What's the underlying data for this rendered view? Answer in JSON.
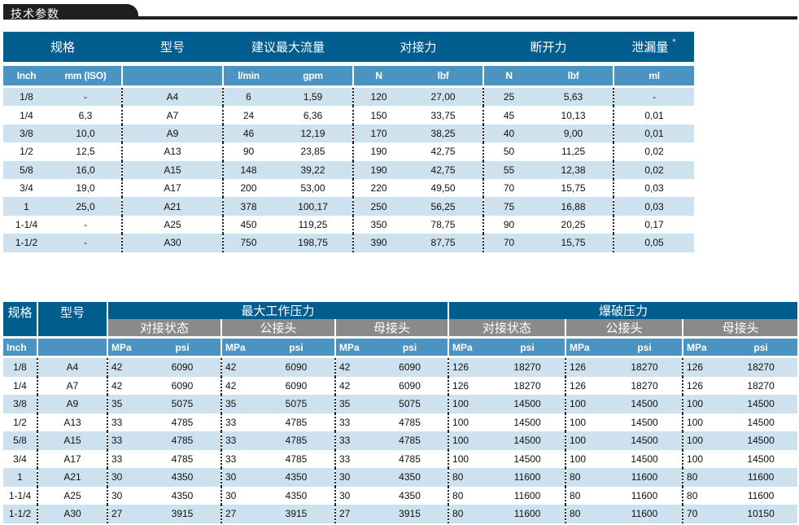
{
  "section_title": "技术参数",
  "table1": {
    "group_headers": [
      "规格",
      "型号",
      "建议最大流量",
      "对接力",
      "断开力",
      "泄漏量"
    ],
    "leak_mark": "*",
    "unit_headers": [
      "Inch",
      "mm (ISO)",
      "",
      "l/min",
      "gpm",
      "N",
      "lbf",
      "N",
      "lbf",
      "ml"
    ],
    "rows": [
      [
        "1/8",
        "-",
        "A4",
        "6",
        "1,59",
        "120",
        "27,00",
        "25",
        "5,63",
        "-"
      ],
      [
        "1/4",
        "6,3",
        "A7",
        "24",
        "6,36",
        "150",
        "33,75",
        "45",
        "10,13",
        "0,01"
      ],
      [
        "3/8",
        "10,0",
        "A9",
        "46",
        "12,19",
        "170",
        "38,25",
        "40",
        "9,00",
        "0,01"
      ],
      [
        "1/2",
        "12,5",
        "A13",
        "90",
        "23,85",
        "190",
        "42,75",
        "50",
        "11,25",
        "0,02"
      ],
      [
        "5/8",
        "16,0",
        "A15",
        "148",
        "39,22",
        "190",
        "42,75",
        "55",
        "12,38",
        "0,02"
      ],
      [
        "3/4",
        "19,0",
        "A17",
        "200",
        "53,00",
        "220",
        "49,50",
        "70",
        "15,75",
        "0,03"
      ],
      [
        "1",
        "25,0",
        "A21",
        "378",
        "100,17",
        "250",
        "56,25",
        "75",
        "16,88",
        "0,03"
      ],
      [
        "1-1/4",
        "-",
        "A25",
        "450",
        "119,25",
        "350",
        "78,75",
        "90",
        "20,25",
        "0,17"
      ],
      [
        "1-1/2",
        "-",
        "A30",
        "750",
        "198,75",
        "390",
        "87,75",
        "70",
        "15,75",
        "0,05"
      ]
    ]
  },
  "table2": {
    "col_spec": "规格",
    "col_model": "型号",
    "group_max": "最大工作压力",
    "group_burst": "爆破压力",
    "sub_headers": [
      "对接状态",
      "公接头",
      "母接头",
      "对接状态",
      "公接头",
      "母接头"
    ],
    "unit_headers": [
      "Inch",
      "",
      "MPa",
      "psi",
      "MPa",
      "psi",
      "MPa",
      "psi",
      "MPa",
      "psi",
      "MPa",
      "psi",
      "MPa",
      "psi"
    ],
    "rows": [
      [
        "1/8",
        "A4",
        "42",
        "6090",
        "42",
        "6090",
        "42",
        "6090",
        "126",
        "18270",
        "126",
        "18270",
        "126",
        "18270"
      ],
      [
        "1/4",
        "A7",
        "42",
        "6090",
        "42",
        "6090",
        "42",
        "6090",
        "126",
        "18270",
        "126",
        "18270",
        "126",
        "18270"
      ],
      [
        "3/8",
        "A9",
        "35",
        "5075",
        "35",
        "5075",
        "35",
        "5075",
        "100",
        "14500",
        "100",
        "14500",
        "100",
        "14500"
      ],
      [
        "1/2",
        "A13",
        "33",
        "4785",
        "33",
        "4785",
        "33",
        "4785",
        "100",
        "14500",
        "100",
        "14500",
        "100",
        "14500"
      ],
      [
        "5/8",
        "A15",
        "33",
        "4785",
        "33",
        "4785",
        "33",
        "4785",
        "100",
        "14500",
        "100",
        "14500",
        "100",
        "14500"
      ],
      [
        "3/4",
        "A17",
        "33",
        "4785",
        "33",
        "4785",
        "33",
        "4785",
        "100",
        "14500",
        "100",
        "14500",
        "100",
        "14500"
      ],
      [
        "1",
        "A21",
        "30",
        "4350",
        "30",
        "4350",
        "30",
        "4350",
        "80",
        "11600",
        "80",
        "11600",
        "80",
        "11600"
      ],
      [
        "1-1/4",
        "A25",
        "30",
        "4350",
        "30",
        "4350",
        "30",
        "4350",
        "80",
        "11600",
        "80",
        "11600",
        "80",
        "11600"
      ],
      [
        "1-1/2",
        "A30",
        "27",
        "3915",
        "27",
        "3915",
        "27",
        "3915",
        "80",
        "11600",
        "80",
        "11600",
        "70",
        "10150"
      ]
    ]
  }
}
